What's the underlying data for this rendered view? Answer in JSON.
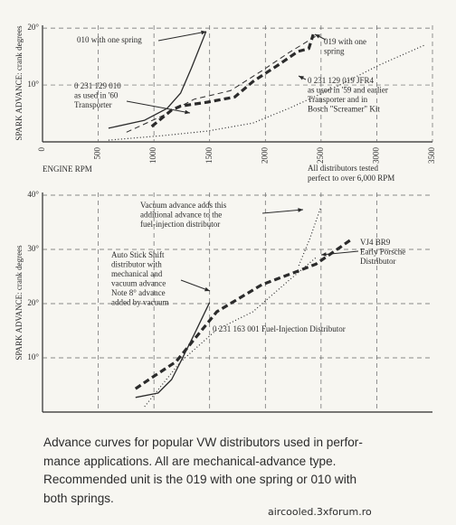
{
  "chart_data": [
    {
      "type": "line",
      "xlim": [
        0,
        3500
      ],
      "ylim": [
        0,
        20.5
      ],
      "xticks": [
        0,
        500,
        1000,
        1500,
        2000,
        2500,
        3000,
        3500
      ],
      "yticks": [
        {
          "value": 10,
          "label": "10°"
        },
        {
          "value": 20,
          "label": "20°"
        }
      ],
      "grid": true,
      "y_label": "SPARK ADVANCE: crank degrees",
      "x_label": "ENGINE RPM",
      "note": [
        "All distributors tested",
        "perfect to over 6,000 RPM"
      ],
      "series": [
        {
          "style": "solid",
          "color": "#2b2b2b",
          "x": [
            592,
            916,
            1118,
            1240,
            1337,
            1467
          ],
          "values": [
            2.4,
            3.8,
            5.9,
            8.6,
            13,
            19.4
          ]
        },
        {
          "style": "dashed",
          "color": "#2b2b2b",
          "x": [
            754,
            1078,
            1361,
            1686,
            1969,
            2212,
            2455
          ],
          "values": [
            1.7,
            4.6,
            7.5,
            9,
            12.5,
            15.7,
            18.6
          ]
        },
        {
          "style": "thick-dashed",
          "color": "#2b2b2b",
          "x": [
            980,
            1159,
            1240,
            1483,
            1726,
            1888,
            2115,
            2293,
            2390,
            2430
          ],
          "values": [
            2.7,
            5.6,
            6.3,
            7,
            7.9,
            10.6,
            13.5,
            15.9,
            16.4,
            18.9
          ]
        },
        {
          "style": "dotted",
          "color": "#2b2b2b",
          "x": [
            592,
            1078,
            1483,
            1888,
            2212,
            2617,
            3022,
            3428
          ],
          "values": [
            0.3,
            1.1,
            1.9,
            3.3,
            5.9,
            9.5,
            13.5,
            17
          ]
        }
      ],
      "annotations": [
        [
          "010 with one spring"
        ],
        [
          "019 with one",
          "spring"
        ],
        [
          "0 231 129 010",
          "as used in '60",
          "Transporter"
        ],
        [
          "0 231 129 019  JFR4",
          "as used in '59 and earlier",
          "Transporter and in",
          "Bosch \"Screamer\" Kit"
        ]
      ]
    },
    {
      "type": "line",
      "xlim": [
        0,
        3500
      ],
      "ylim": [
        0,
        40.5
      ],
      "xgrid": [
        500,
        1000,
        1500,
        2000,
        2500,
        3000
      ],
      "yticks": [
        {
          "value": 10,
          "label": "10°"
        },
        {
          "value": 20,
          "label": "20°"
        },
        {
          "value": 30,
          "label": "30°"
        },
        {
          "value": 40,
          "label": "40°"
        }
      ],
      "grid": true,
      "y_label": "SPARK ADVANCE: crank degrees",
      "series": [
        {
          "style": "solid",
          "color": "#2b2b2b",
          "x": [
            835,
            1037,
            1159,
            1240,
            1361,
            1499
          ],
          "values": [
            2.7,
            3.5,
            6,
            9.3,
            14.3,
            20.2
          ]
        },
        {
          "style": "thick-dashed",
          "color": "#2b2b2b",
          "x": [
            835,
            956,
            1199,
            1564,
            1969,
            2293,
            2455,
            2763
          ],
          "values": [
            4.3,
            6,
            9.3,
            18.5,
            23.5,
            26,
            27.3,
            31.7
          ]
        },
        {
          "style": "dotted",
          "color": "#2b2b2b",
          "x": [
            916,
            1240,
            1564,
            1888,
            2212,
            2455
          ],
          "values": [
            1,
            9.3,
            15.2,
            18.5,
            24.3,
            28.5
          ]
        },
        {
          "style": "dotted",
          "color": "#2b2b2b",
          "x": [
            2300,
            2400,
            2496
          ],
          "values": [
            27,
            32,
            37.7
          ]
        }
      ],
      "annotations": [
        [
          "Vacuum advance adds this",
          "additional advance to the",
          "fuel-injection distributor"
        ],
        [
          "Auto Stick Shift",
          "distributor with",
          "mechanical and",
          "vacuum advance",
          "Note 8° advance",
          "added by vacuum"
        ],
        [
          "VJ4 BR9",
          "Early Porsche",
          "Distributor"
        ],
        [
          "0 231 163 001 Fuel-Injection Distributor"
        ]
      ]
    }
  ],
  "caption": [
    "Advance curves for popular VW distributors used in perfor-",
    "mance applications.  All are mechanical-advance type.",
    "Recommended unit is the 019 with one spring or 010 with",
    "both springs."
  ],
  "watermark": "aircooled.3xforum.ro"
}
